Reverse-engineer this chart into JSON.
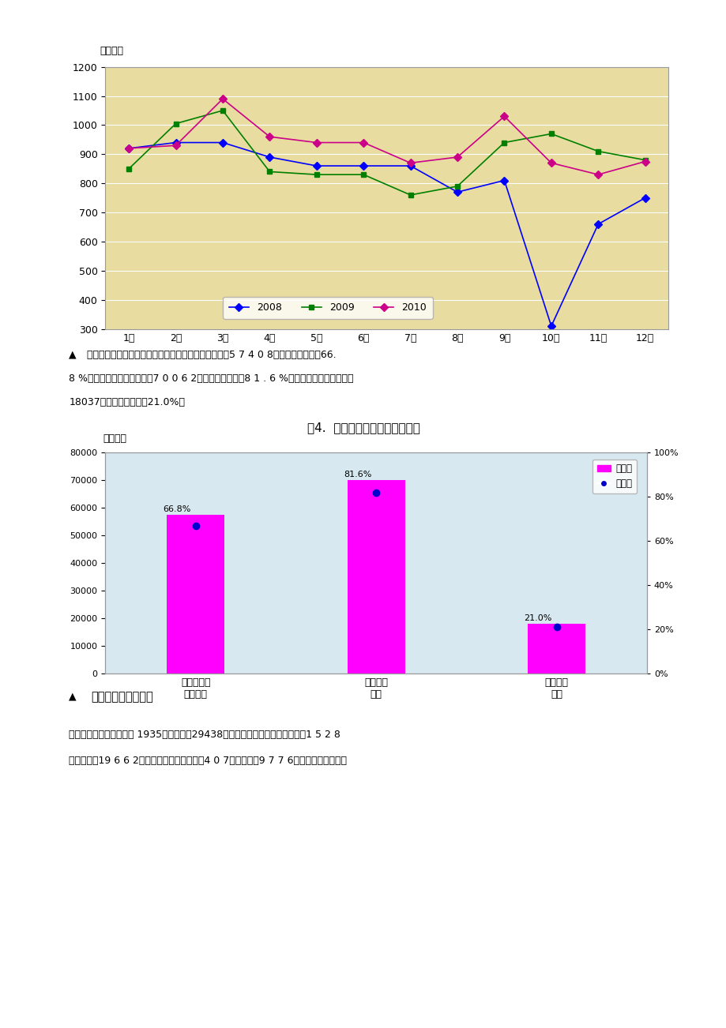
{
  "page_bg": "#ffffff",
  "chart1": {
    "ylabel": "（万户）",
    "ylim": [
      300,
      1200
    ],
    "yticks": [
      300,
      400,
      500,
      600,
      700,
      800,
      900,
      1000,
      1100,
      1200
    ],
    "months": [
      "1月",
      "2月",
      "3月",
      "4月",
      "5月",
      "6月",
      "7月",
      "8月",
      "9月",
      "10月",
      "11月",
      "12月"
    ],
    "series_2008": [
      920,
      940,
      940,
      890,
      860,
      860,
      860,
      770,
      810,
      310,
      660,
      750
    ],
    "series_2009": [
      850,
      1005,
      1050,
      840,
      830,
      830,
      760,
      790,
      940,
      970,
      910,
      880
    ],
    "series_2010": [
      920,
      930,
      1090,
      960,
      940,
      940,
      870,
      890,
      1030,
      870,
      830,
      875
    ],
    "color_2008": "#0000ff",
    "color_2009": "#008000",
    "color_2010": "#cc0088",
    "bg_color": "#e8dca0"
  },
  "text_bullet": "▲",
  "text_line1": "移动增值业务发展较快，移动个性化回铃业务顾客达到5 7 4 0 8万户，渗入率达到66.",
  "text_line2": "8 %；移动短信业务顾客达到7 0 0 6 2万户，渗入率达到8 1 . 6 %；移动彩信业务顾客达到",
  "text_line3": "18037万户，渗入率达到21.0%。",
  "fig4_title": "图4.  重要移动增值业务发展状况",
  "chart2": {
    "ylabel_left": "（万户）",
    "cat1": "移动个性化\n回铃业务",
    "cat2": "移动短信\n业务",
    "cat3": "移动彩信\n业务",
    "bar_values": [
      57408,
      70062,
      18037
    ],
    "penetration": [
      66.8,
      81.6,
      21.0
    ],
    "bar_color": "#ff00ff",
    "dot_color": "#0000cc",
    "bg_color": "#d8e8f0",
    "ylim_left": [
      0,
      80000
    ],
    "yticks_left": [
      0,
      10000,
      20000,
      30000,
      40000,
      50000,
      60000,
      70000,
      80000
    ],
    "yticks_right": [
      0.0,
      0.2,
      0.4,
      0.6,
      0.8,
      1.0
    ],
    "yticks_right_labels": [
      "0%",
      "20%",
      "40%",
      "60%",
      "80%",
      "100%"
    ],
    "legend_user": "用户数",
    "legend_pen": "渗透率"
  },
  "section_bullet": "▲",
  "section_title": "（二）固定电话顾客",
  "body_line1": "，全国固定电话顾客减少 1935万户，达到29438万户。其中，都市电话顾客减少1 5 2 8",
  "body_line2": "万户，达到19 6 6 2万户；农村电话顾客减少4 0 7万户，达到9 7 7 6万户。固定电话普及"
}
